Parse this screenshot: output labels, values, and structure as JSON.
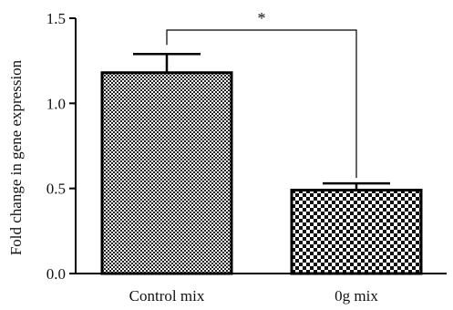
{
  "chart_data": {
    "type": "bar",
    "categories": [
      "Control mix",
      "0g mix"
    ],
    "values": [
      1.18,
      0.49
    ],
    "errors": [
      0.11,
      0.04
    ],
    "ylabel": "Fold change in gene expression",
    "xlabel": "",
    "ylim": [
      0,
      1.5
    ],
    "yticks": [
      0.0,
      0.5,
      1.0,
      1.5
    ],
    "ytick_labels": [
      "0.0",
      "0.5",
      "1.0",
      "1.5"
    ],
    "bar_patterns": [
      "fine-checker",
      "coarse-checker"
    ],
    "significance": {
      "between": [
        0,
        1
      ],
      "label": "*"
    },
    "grid": false,
    "legend": "none"
  }
}
